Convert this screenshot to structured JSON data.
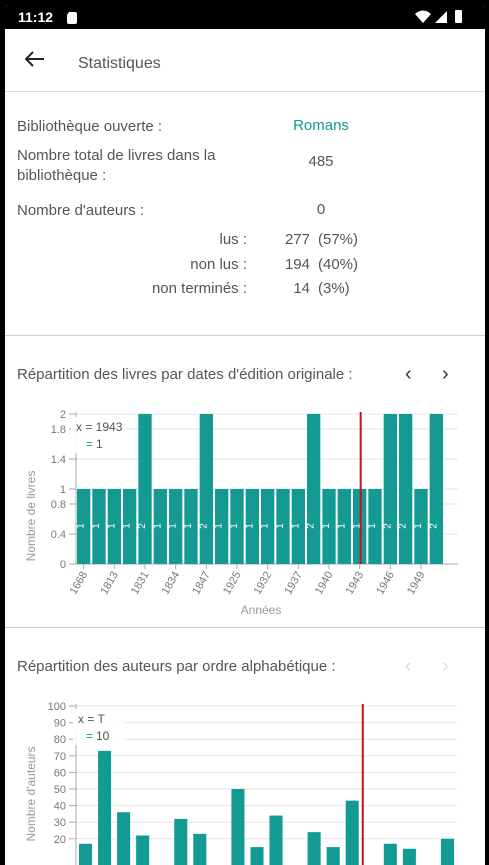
{
  "status_bar": {
    "time": "11:12"
  },
  "app_bar": {
    "title": "Statistiques"
  },
  "stats": {
    "library_label": "Bibliothèque ouverte :",
    "library_value": "Romans",
    "total_label": "Nombre total de livres dans la bibliothèque :",
    "total_value": "485",
    "authors_label": "Nombre d'auteurs :",
    "authors_value": "0",
    "read": {
      "label": "lus :",
      "count": "277",
      "pct": "(57%)"
    },
    "unread": {
      "label": "non lus :",
      "count": "194",
      "pct": "(40%)"
    },
    "unfinished": {
      "label": "non terminés :",
      "count": "14",
      "pct": "(3%)"
    }
  },
  "colors": {
    "accent": "#129a93",
    "accent_light": "#abd8d6",
    "cursor": "#cc1111"
  },
  "chart_data": [
    {
      "type": "bar",
      "title": "Répartition des livres par dates d'édition originale :",
      "xlabel": "Années",
      "ylabel": "Nombre de livres",
      "ylim": [
        0,
        2
      ],
      "yticks": [
        "0",
        "0.4",
        "0.8",
        "1",
        "1.4",
        "1.8",
        "2"
      ],
      "ytick_values": [
        0,
        0.4,
        0.8,
        1,
        1.4,
        1.8,
        2
      ],
      "xticks": [
        "1668",
        "1813",
        "1831",
        "1834",
        "1847",
        "1925",
        "1932",
        "1937",
        "1940",
        "1943",
        "1946",
        "1949"
      ],
      "values": [
        1,
        1,
        1,
        1,
        2,
        1,
        1,
        1,
        2,
        1,
        1,
        1,
        1,
        1,
        1,
        2,
        1,
        1,
        1,
        1,
        2,
        2,
        1,
        2
      ],
      "bar_labels": [
        "1",
        "1",
        "1",
        "1",
        "2",
        "1",
        "1",
        "1",
        "2",
        "1",
        "1",
        "1",
        "1",
        "1",
        "1",
        "2",
        "1",
        "1",
        "1",
        "1",
        "2",
        "2",
        "1",
        "2"
      ],
      "highlight_index": 4,
      "cursor_x": 1943,
      "tooltip": {
        "x_text": "x = 1943",
        "y_text": "1"
      }
    },
    {
      "type": "bar",
      "title": "Répartition des auteurs par ordre alphabétique :",
      "ylabel": "Nombre d'auteurs",
      "ylim": [
        0,
        100
      ],
      "yticks": [
        "20",
        "30",
        "40",
        "50",
        "60",
        "70",
        "80",
        "90",
        "100"
      ],
      "ytick_values": [
        20,
        30,
        40,
        50,
        60,
        70,
        80,
        90,
        100
      ],
      "values": [
        17,
        73,
        36,
        22,
        3,
        32,
        23,
        2,
        50,
        15,
        34,
        2,
        24,
        15,
        43,
        2,
        17,
        14,
        2,
        20
      ],
      "cursor_category": "T",
      "tooltip": {
        "x_text": "x = T",
        "y_text": "10"
      }
    }
  ]
}
